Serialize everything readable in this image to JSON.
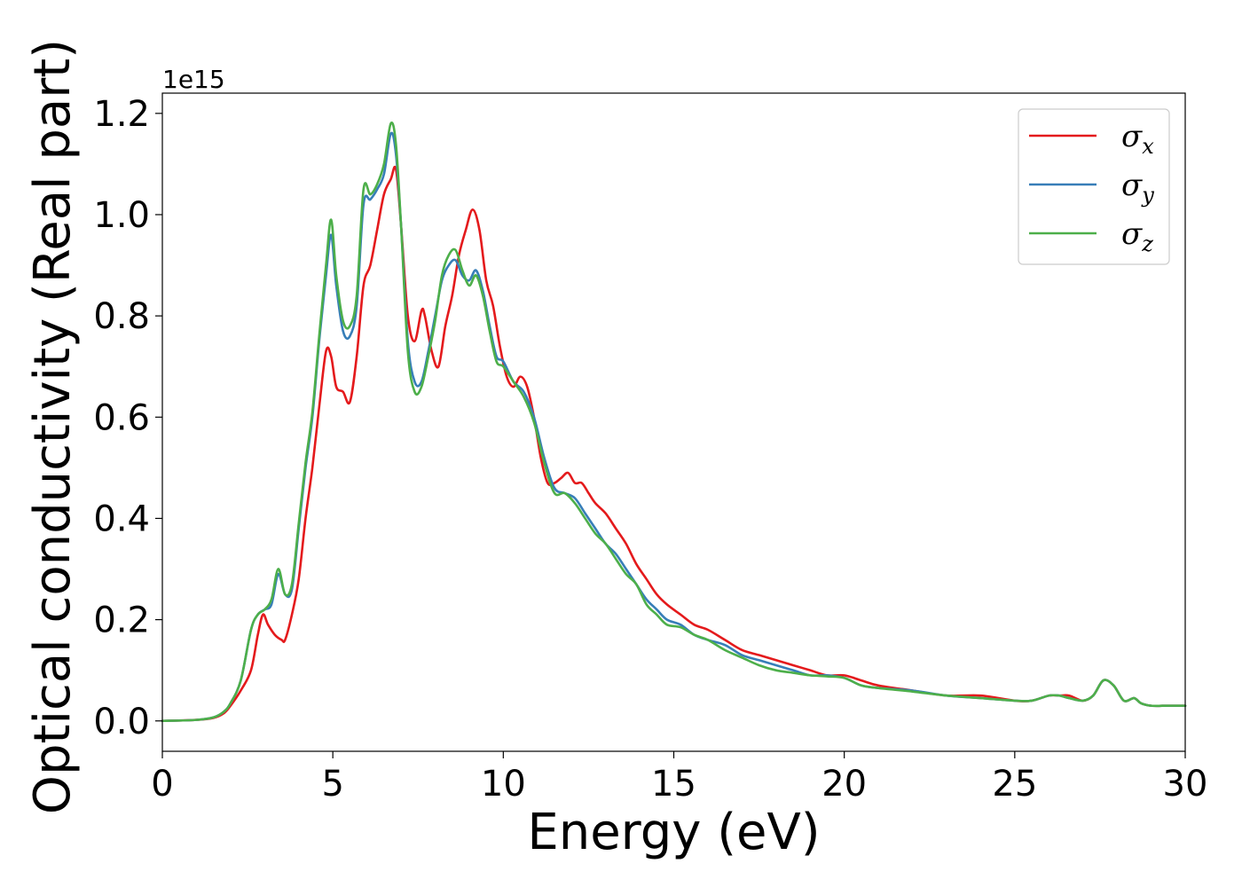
{
  "chart_data": {
    "type": "line",
    "title": "",
    "xlabel": "Energy (eV)",
    "ylabel": "Optical conductivity (Real part)",
    "y_offset_label": "1e15",
    "xlim": [
      0,
      30
    ],
    "ylim": [
      -0.06,
      1.24
    ],
    "x_ticks": [
      0,
      5,
      10,
      15,
      20,
      25,
      30
    ],
    "y_ticks": [
      0.0,
      0.2,
      0.4,
      0.6,
      0.8,
      1.0,
      1.2
    ],
    "x_tick_labels": [
      "0",
      "5",
      "10",
      "15",
      "20",
      "25",
      "30"
    ],
    "y_tick_labels": [
      "0.0",
      "0.2",
      "0.4",
      "0.6",
      "0.8",
      "1.0",
      "1.2"
    ],
    "grid": false,
    "legend_position": "top-right",
    "series": [
      {
        "name": "σx",
        "symbol": "σ",
        "sub": "x",
        "color": "#e41a1c",
        "x": [
          0,
          1,
          1.5,
          1.8,
          2.0,
          2.3,
          2.6,
          2.8,
          2.95,
          3.1,
          3.3,
          3.5,
          3.6,
          3.8,
          4.0,
          4.2,
          4.4,
          4.6,
          4.8,
          4.95,
          5.1,
          5.3,
          5.5,
          5.7,
          5.9,
          6.1,
          6.3,
          6.5,
          6.7,
          6.85,
          7.0,
          7.2,
          7.4,
          7.6,
          7.7,
          7.9,
          8.1,
          8.3,
          8.5,
          8.7,
          8.9,
          9.1,
          9.3,
          9.5,
          9.7,
          9.9,
          10.1,
          10.3,
          10.5,
          10.7,
          10.9,
          11.1,
          11.3,
          11.5,
          11.7,
          11.9,
          12.1,
          12.3,
          12.5,
          12.7,
          13.0,
          13.3,
          13.6,
          13.9,
          14.2,
          14.5,
          14.8,
          15.2,
          15.6,
          16.0,
          16.5,
          17.0,
          17.5,
          18.0,
          18.5,
          19.0,
          19.5,
          20.0,
          20.5,
          21.0,
          22.0,
          23.0,
          24.0,
          25.0,
          25.5,
          26.0,
          26.3,
          26.6,
          27.0,
          27.3,
          27.6,
          27.9,
          28.2,
          28.5,
          28.7,
          29.0,
          29.5,
          30.0
        ],
        "y": [
          0,
          0.002,
          0.006,
          0.015,
          0.03,
          0.06,
          0.1,
          0.17,
          0.21,
          0.19,
          0.17,
          0.16,
          0.16,
          0.21,
          0.28,
          0.4,
          0.5,
          0.62,
          0.73,
          0.72,
          0.66,
          0.65,
          0.63,
          0.72,
          0.86,
          0.9,
          0.97,
          1.04,
          1.07,
          1.09,
          0.98,
          0.8,
          0.75,
          0.81,
          0.8,
          0.73,
          0.7,
          0.78,
          0.84,
          0.92,
          0.97,
          1.01,
          0.97,
          0.87,
          0.82,
          0.74,
          0.68,
          0.66,
          0.68,
          0.66,
          0.6,
          0.52,
          0.47,
          0.47,
          0.48,
          0.49,
          0.47,
          0.47,
          0.45,
          0.43,
          0.41,
          0.38,
          0.35,
          0.31,
          0.28,
          0.25,
          0.23,
          0.21,
          0.19,
          0.18,
          0.16,
          0.14,
          0.13,
          0.12,
          0.11,
          0.1,
          0.09,
          0.09,
          0.08,
          0.07,
          0.06,
          0.05,
          0.05,
          0.04,
          0.04,
          0.05,
          0.05,
          0.05,
          0.04,
          0.05,
          0.08,
          0.07,
          0.04,
          0.045,
          0.035,
          0.03,
          0.03,
          0.03
        ]
      },
      {
        "name": "σy",
        "symbol": "σ",
        "sub": "y",
        "color": "#377eb8",
        "x": [
          0,
          1,
          1.5,
          1.8,
          2.0,
          2.3,
          2.6,
          2.8,
          3.0,
          3.2,
          3.4,
          3.6,
          3.8,
          4.0,
          4.2,
          4.4,
          4.6,
          4.8,
          4.95,
          5.1,
          5.3,
          5.5,
          5.7,
          5.9,
          6.1,
          6.3,
          6.5,
          6.7,
          6.85,
          7.0,
          7.2,
          7.4,
          7.6,
          7.8,
          8.0,
          8.2,
          8.4,
          8.6,
          8.8,
          9.0,
          9.2,
          9.4,
          9.6,
          9.8,
          10.0,
          10.3,
          10.6,
          10.9,
          11.2,
          11.5,
          11.8,
          12.1,
          12.4,
          12.7,
          13.0,
          13.3,
          13.6,
          13.9,
          14.2,
          14.5,
          14.8,
          15.2,
          15.6,
          16.0,
          16.5,
          17.0,
          17.5,
          18.0,
          18.5,
          19.0,
          19.5,
          20.0,
          20.5,
          21.0,
          22.0,
          23.0,
          24.0,
          25.0,
          25.5,
          26.0,
          26.3,
          26.6,
          27.0,
          27.3,
          27.6,
          27.9,
          28.2,
          28.5,
          28.7,
          29.0,
          29.5,
          30.0
        ],
        "y": [
          0,
          0.002,
          0.007,
          0.018,
          0.035,
          0.08,
          0.18,
          0.21,
          0.22,
          0.23,
          0.29,
          0.25,
          0.26,
          0.38,
          0.5,
          0.6,
          0.75,
          0.88,
          0.96,
          0.86,
          0.77,
          0.76,
          0.82,
          1.02,
          1.03,
          1.05,
          1.08,
          1.16,
          1.12,
          0.98,
          0.75,
          0.67,
          0.67,
          0.73,
          0.8,
          0.87,
          0.9,
          0.91,
          0.88,
          0.87,
          0.89,
          0.85,
          0.78,
          0.72,
          0.71,
          0.67,
          0.65,
          0.6,
          0.52,
          0.46,
          0.45,
          0.44,
          0.41,
          0.38,
          0.35,
          0.33,
          0.3,
          0.27,
          0.24,
          0.22,
          0.2,
          0.19,
          0.17,
          0.16,
          0.15,
          0.13,
          0.12,
          0.11,
          0.1,
          0.09,
          0.09,
          0.085,
          0.07,
          0.065,
          0.06,
          0.05,
          0.045,
          0.04,
          0.04,
          0.05,
          0.05,
          0.045,
          0.04,
          0.05,
          0.08,
          0.07,
          0.04,
          0.045,
          0.035,
          0.03,
          0.03,
          0.03
        ]
      },
      {
        "name": "σz",
        "symbol": "σ",
        "sub": "z",
        "color": "#4daf4a",
        "x": [
          0,
          1,
          1.5,
          1.8,
          2.0,
          2.3,
          2.6,
          2.8,
          3.0,
          3.2,
          3.4,
          3.6,
          3.8,
          4.0,
          4.2,
          4.4,
          4.6,
          4.8,
          4.95,
          5.1,
          5.3,
          5.5,
          5.7,
          5.9,
          6.1,
          6.3,
          6.5,
          6.7,
          6.85,
          7.0,
          7.2,
          7.4,
          7.6,
          7.8,
          8.0,
          8.2,
          8.4,
          8.6,
          8.8,
          9.0,
          9.2,
          9.4,
          9.6,
          9.8,
          10.0,
          10.3,
          10.6,
          10.9,
          11.2,
          11.5,
          11.8,
          12.1,
          12.4,
          12.7,
          13.0,
          13.3,
          13.6,
          13.9,
          14.2,
          14.5,
          14.8,
          15.2,
          15.6,
          16.0,
          16.5,
          17.0,
          17.5,
          18.0,
          18.5,
          19.0,
          19.5,
          20.0,
          20.5,
          21.0,
          22.0,
          23.0,
          24.0,
          25.0,
          25.5,
          26.0,
          26.3,
          26.6,
          27.0,
          27.3,
          27.6,
          27.9,
          28.2,
          28.5,
          28.7,
          29.0,
          29.5,
          30.0
        ],
        "y": [
          0,
          0.002,
          0.007,
          0.018,
          0.035,
          0.08,
          0.18,
          0.21,
          0.22,
          0.24,
          0.3,
          0.25,
          0.27,
          0.39,
          0.51,
          0.61,
          0.76,
          0.9,
          0.99,
          0.88,
          0.79,
          0.78,
          0.84,
          1.05,
          1.04,
          1.06,
          1.1,
          1.18,
          1.14,
          0.98,
          0.73,
          0.65,
          0.66,
          0.72,
          0.79,
          0.88,
          0.92,
          0.93,
          0.89,
          0.86,
          0.88,
          0.84,
          0.77,
          0.71,
          0.7,
          0.67,
          0.64,
          0.59,
          0.51,
          0.45,
          0.45,
          0.43,
          0.4,
          0.37,
          0.35,
          0.32,
          0.29,
          0.27,
          0.23,
          0.21,
          0.19,
          0.185,
          0.17,
          0.16,
          0.14,
          0.125,
          0.11,
          0.1,
          0.095,
          0.09,
          0.088,
          0.085,
          0.07,
          0.065,
          0.058,
          0.05,
          0.045,
          0.04,
          0.04,
          0.05,
          0.05,
          0.045,
          0.04,
          0.05,
          0.08,
          0.07,
          0.04,
          0.045,
          0.035,
          0.03,
          0.03,
          0.03
        ]
      }
    ]
  }
}
